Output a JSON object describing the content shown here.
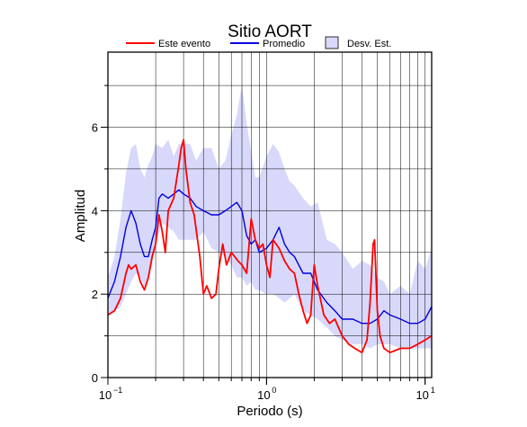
{
  "chart_data": {
    "type": "line",
    "title": "Sitio AORT",
    "xlabel": "Periodo (s)",
    "ylabel": "Amplitud",
    "xscale": "log",
    "xlim": [
      0.1,
      11
    ],
    "ylim": [
      0,
      7.8
    ],
    "x_ticks": [
      {
        "value": 0.1,
        "base": "10",
        "exp": "−1"
      },
      {
        "value": 1,
        "label": "10",
        "exp": "0"
      },
      {
        "value": 10,
        "base": "10",
        "exp": "1"
      }
    ],
    "y_ticks": [
      {
        "value": 0,
        "label": "0"
      },
      {
        "value": 2,
        "label": "2"
      },
      {
        "value": 4,
        "label": "4"
      },
      {
        "value": 6,
        "label": "6"
      }
    ],
    "grid": true,
    "legend_position": "top",
    "legend": [
      {
        "label": "Este evento",
        "kind": "line",
        "color": "#ff0000"
      },
      {
        "label": "Promedio",
        "kind": "line",
        "color": "#0000dd"
      },
      {
        "label": "Desv. Est.",
        "kind": "box",
        "color": "#d8d8fb"
      }
    ],
    "series": [
      {
        "kind": "band",
        "color": "#d8d8fb",
        "x": [
          0.1,
          0.11,
          0.12,
          0.13,
          0.14,
          0.15,
          0.16,
          0.17,
          0.18,
          0.19,
          0.2,
          0.22,
          0.24,
          0.26,
          0.28,
          0.3,
          0.33,
          0.36,
          0.4,
          0.45,
          0.5,
          0.55,
          0.6,
          0.65,
          0.7,
          0.75,
          0.8,
          0.85,
          0.9,
          1.0,
          1.1,
          1.2,
          1.3,
          1.4,
          1.5,
          1.7,
          1.9,
          2.1,
          2.4,
          2.7,
          3.0,
          3.5,
          4.0,
          4.5,
          5.0,
          5.5,
          6.0,
          7.0,
          8.0,
          9.0,
          10.0,
          11.0
        ],
        "upper": [
          2.4,
          2.9,
          3.8,
          4.9,
          5.5,
          5.6,
          5.0,
          4.8,
          5.1,
          5.3,
          5.6,
          5.5,
          5.7,
          5.3,
          5.6,
          5.6,
          5.6,
          5.2,
          5.5,
          5.5,
          5.0,
          5.2,
          5.8,
          6.3,
          7.0,
          6.1,
          5.4,
          4.8,
          4.8,
          5.3,
          5.6,
          5.4,
          5.0,
          4.7,
          4.6,
          4.3,
          4.1,
          4.2,
          3.3,
          3.2,
          3.0,
          2.6,
          2.8,
          2.7,
          2.4,
          2.3,
          2.0,
          2.2,
          2.0,
          2.8,
          2.6,
          3.1
        ],
        "lower": [
          1.5,
          1.6,
          1.7,
          2.0,
          2.3,
          2.5,
          2.4,
          2.2,
          2.4,
          2.7,
          3.2,
          3.7,
          3.6,
          3.5,
          3.3,
          3.3,
          3.3,
          3.3,
          3.5,
          3.1,
          3.0,
          2.9,
          2.7,
          2.4,
          2.4,
          2.2,
          2.3,
          2.1,
          2.1,
          2.0,
          2.0,
          1.9,
          1.8,
          1.9,
          2.0,
          1.6,
          1.5,
          1.4,
          1.2,
          1.0,
          0.9,
          0.8,
          0.8,
          0.7,
          0.8,
          0.8,
          0.8,
          0.7,
          0.7,
          0.7,
          0.7,
          0.7
        ]
      },
      {
        "name": "Promedio",
        "kind": "line",
        "color": "#0000dd",
        "x": [
          0.1,
          0.11,
          0.12,
          0.13,
          0.14,
          0.15,
          0.16,
          0.17,
          0.18,
          0.19,
          0.2,
          0.21,
          0.22,
          0.24,
          0.26,
          0.28,
          0.3,
          0.33,
          0.36,
          0.4,
          0.45,
          0.5,
          0.55,
          0.6,
          0.65,
          0.7,
          0.75,
          0.8,
          0.85,
          0.9,
          1.0,
          1.1,
          1.2,
          1.3,
          1.4,
          1.5,
          1.7,
          1.9,
          2.1,
          2.4,
          2.7,
          3.0,
          3.5,
          4.0,
          4.5,
          5.0,
          5.5,
          6.0,
          7.0,
          8.0,
          9.0,
          10.0,
          11.0
        ],
        "y": [
          1.9,
          2.3,
          2.9,
          3.6,
          4.0,
          3.7,
          3.2,
          2.9,
          2.9,
          3.3,
          3.6,
          4.3,
          4.4,
          4.3,
          4.4,
          4.5,
          4.4,
          4.3,
          4.1,
          4.0,
          3.9,
          3.9,
          4.0,
          4.1,
          4.2,
          4.0,
          3.4,
          3.2,
          3.3,
          3.0,
          3.1,
          3.3,
          3.6,
          3.2,
          3.0,
          2.9,
          2.5,
          2.5,
          2.1,
          1.8,
          1.6,
          1.4,
          1.4,
          1.3,
          1.3,
          1.4,
          1.6,
          1.5,
          1.4,
          1.3,
          1.3,
          1.4,
          1.7
        ]
      },
      {
        "name": "Este evento",
        "kind": "line",
        "color": "#ff0000",
        "x": [
          0.1,
          0.11,
          0.12,
          0.13,
          0.135,
          0.14,
          0.15,
          0.16,
          0.17,
          0.18,
          0.19,
          0.2,
          0.21,
          0.22,
          0.23,
          0.24,
          0.26,
          0.28,
          0.29,
          0.3,
          0.31,
          0.33,
          0.35,
          0.38,
          0.4,
          0.42,
          0.45,
          0.48,
          0.5,
          0.53,
          0.56,
          0.6,
          0.63,
          0.66,
          0.7,
          0.75,
          0.8,
          0.85,
          0.9,
          0.95,
          1.0,
          1.05,
          1.1,
          1.2,
          1.3,
          1.4,
          1.5,
          1.6,
          1.7,
          1.8,
          1.9,
          2.0,
          2.1,
          2.3,
          2.5,
          2.7,
          3.0,
          3.3,
          3.6,
          4.0,
          4.3,
          4.5,
          4.7,
          4.8,
          4.9,
          5.0,
          5.2,
          5.5,
          6.0,
          7.0,
          8.0,
          9.0,
          10.0,
          11.0
        ],
        "y": [
          1.5,
          1.6,
          1.9,
          2.5,
          2.7,
          2.6,
          2.7,
          2.3,
          2.1,
          2.4,
          2.9,
          3.2,
          3.9,
          3.5,
          3.0,
          4.0,
          4.3,
          5.1,
          5.5,
          5.7,
          5.0,
          4.2,
          3.9,
          2.9,
          2.0,
          2.2,
          1.9,
          2.0,
          2.6,
          3.2,
          2.7,
          3.0,
          2.9,
          2.8,
          2.7,
          2.5,
          3.8,
          3.3,
          3.1,
          3.2,
          2.7,
          2.4,
          3.3,
          3.1,
          2.8,
          2.6,
          2.5,
          2.0,
          1.6,
          1.3,
          1.5,
          2.7,
          2.2,
          1.5,
          1.3,
          1.4,
          1.0,
          0.8,
          0.7,
          0.6,
          0.9,
          1.8,
          3.2,
          3.3,
          2.4,
          1.6,
          1.0,
          0.7,
          0.6,
          0.7,
          0.7,
          0.8,
          0.9,
          1.0
        ]
      }
    ]
  }
}
